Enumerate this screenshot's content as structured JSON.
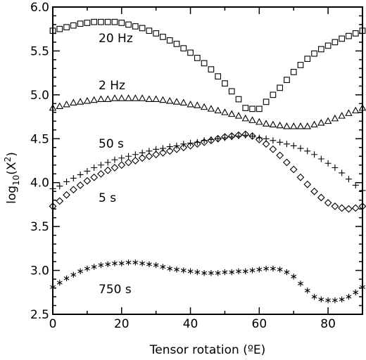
{
  "chart_data": {
    "type": "scatter",
    "xlabel": "Tensor rotation (ºE)",
    "ylabel": "log10(X2)",
    "xlim": [
      0,
      90
    ],
    "ylim": [
      2.5,
      6.0
    ],
    "xticks": [
      "0",
      "20",
      "40",
      "60",
      "80"
    ],
    "xtick_values": [
      0,
      20,
      40,
      60,
      80
    ],
    "yticks": [
      "2.5",
      "3.0",
      "3.5",
      "4.0",
      "4.5",
      "5.0",
      "5.5",
      "6.0"
    ],
    "ytick_values": [
      2.5,
      3.0,
      3.5,
      4.0,
      4.5,
      5.0,
      5.5,
      6.0
    ],
    "grid": false,
    "x": [
      0,
      2,
      4,
      6,
      8,
      10,
      12,
      14,
      16,
      18,
      20,
      22,
      24,
      26,
      28,
      30,
      32,
      34,
      36,
      38,
      40,
      42,
      44,
      46,
      48,
      50,
      52,
      54,
      56,
      58,
      60,
      62,
      64,
      66,
      68,
      70,
      72,
      74,
      76,
      78,
      80,
      82,
      84,
      86,
      88,
      90
    ],
    "series": [
      {
        "name": "20 Hz",
        "marker": "square",
        "values": [
          5.73,
          5.75,
          5.77,
          5.79,
          5.81,
          5.82,
          5.83,
          5.83,
          5.83,
          5.83,
          5.82,
          5.8,
          5.78,
          5.76,
          5.73,
          5.7,
          5.66,
          5.62,
          5.58,
          5.53,
          5.48,
          5.42,
          5.36,
          5.29,
          5.21,
          5.13,
          5.04,
          4.95,
          4.85,
          4.84,
          4.84,
          4.92,
          5.0,
          5.08,
          5.17,
          5.26,
          5.34,
          5.41,
          5.47,
          5.52,
          5.56,
          5.6,
          5.64,
          5.67,
          5.7,
          5.73
        ]
      },
      {
        "name": "2 Hz",
        "marker": "triangle",
        "values": [
          4.85,
          4.87,
          4.89,
          4.91,
          4.92,
          4.93,
          4.94,
          4.95,
          4.95,
          4.96,
          4.96,
          4.96,
          4.96,
          4.96,
          4.95,
          4.95,
          4.94,
          4.93,
          4.92,
          4.91,
          4.89,
          4.88,
          4.86,
          4.84,
          4.82,
          4.8,
          4.78,
          4.76,
          4.73,
          4.71,
          4.69,
          4.67,
          4.66,
          4.65,
          4.64,
          4.64,
          4.64,
          4.64,
          4.66,
          4.68,
          4.7,
          4.73,
          4.76,
          4.79,
          4.82,
          4.85
        ]
      },
      {
        "name": "50 s",
        "marker": "plus",
        "values": [
          3.93,
          3.96,
          4.01,
          4.05,
          4.09,
          4.13,
          4.17,
          4.2,
          4.23,
          4.26,
          4.28,
          4.3,
          4.32,
          4.34,
          4.36,
          4.38,
          4.39,
          4.41,
          4.42,
          4.44,
          4.45,
          4.46,
          4.48,
          4.49,
          4.5,
          4.51,
          4.52,
          4.53,
          4.54,
          4.53,
          4.51,
          4.5,
          4.48,
          4.46,
          4.44,
          4.42,
          4.39,
          4.36,
          4.32,
          4.27,
          4.22,
          4.17,
          4.11,
          4.04,
          3.97,
          3.91
        ]
      },
      {
        "name": "5 s",
        "marker": "diamond",
        "values": [
          3.73,
          3.79,
          3.86,
          3.92,
          3.97,
          4.02,
          4.06,
          4.1,
          4.14,
          4.17,
          4.2,
          4.23,
          4.25,
          4.28,
          4.3,
          4.32,
          4.34,
          4.36,
          4.38,
          4.4,
          4.42,
          4.44,
          4.46,
          4.48,
          4.5,
          4.52,
          4.53,
          4.54,
          4.55,
          4.53,
          4.49,
          4.44,
          4.38,
          4.31,
          4.23,
          4.15,
          4.06,
          3.98,
          3.9,
          3.83,
          3.77,
          3.73,
          3.71,
          3.7,
          3.71,
          3.73
        ]
      },
      {
        "name": "750 s",
        "marker": "asterisk",
        "values": [
          2.81,
          2.86,
          2.91,
          2.95,
          2.99,
          3.02,
          3.04,
          3.06,
          3.07,
          3.08,
          3.08,
          3.09,
          3.09,
          3.08,
          3.07,
          3.06,
          3.04,
          3.02,
          3.01,
          3.0,
          2.99,
          2.98,
          2.97,
          2.97,
          2.97,
          2.98,
          2.98,
          2.99,
          2.99,
          3.0,
          3.01,
          3.02,
          3.02,
          3.01,
          2.98,
          2.93,
          2.85,
          2.77,
          2.7,
          2.67,
          2.66,
          2.66,
          2.67,
          2.7,
          2.75,
          2.81
        ]
      }
    ],
    "labels": [
      "20 Hz",
      "2 Hz",
      "50 s",
      "5 s",
      "750 s"
    ]
  }
}
